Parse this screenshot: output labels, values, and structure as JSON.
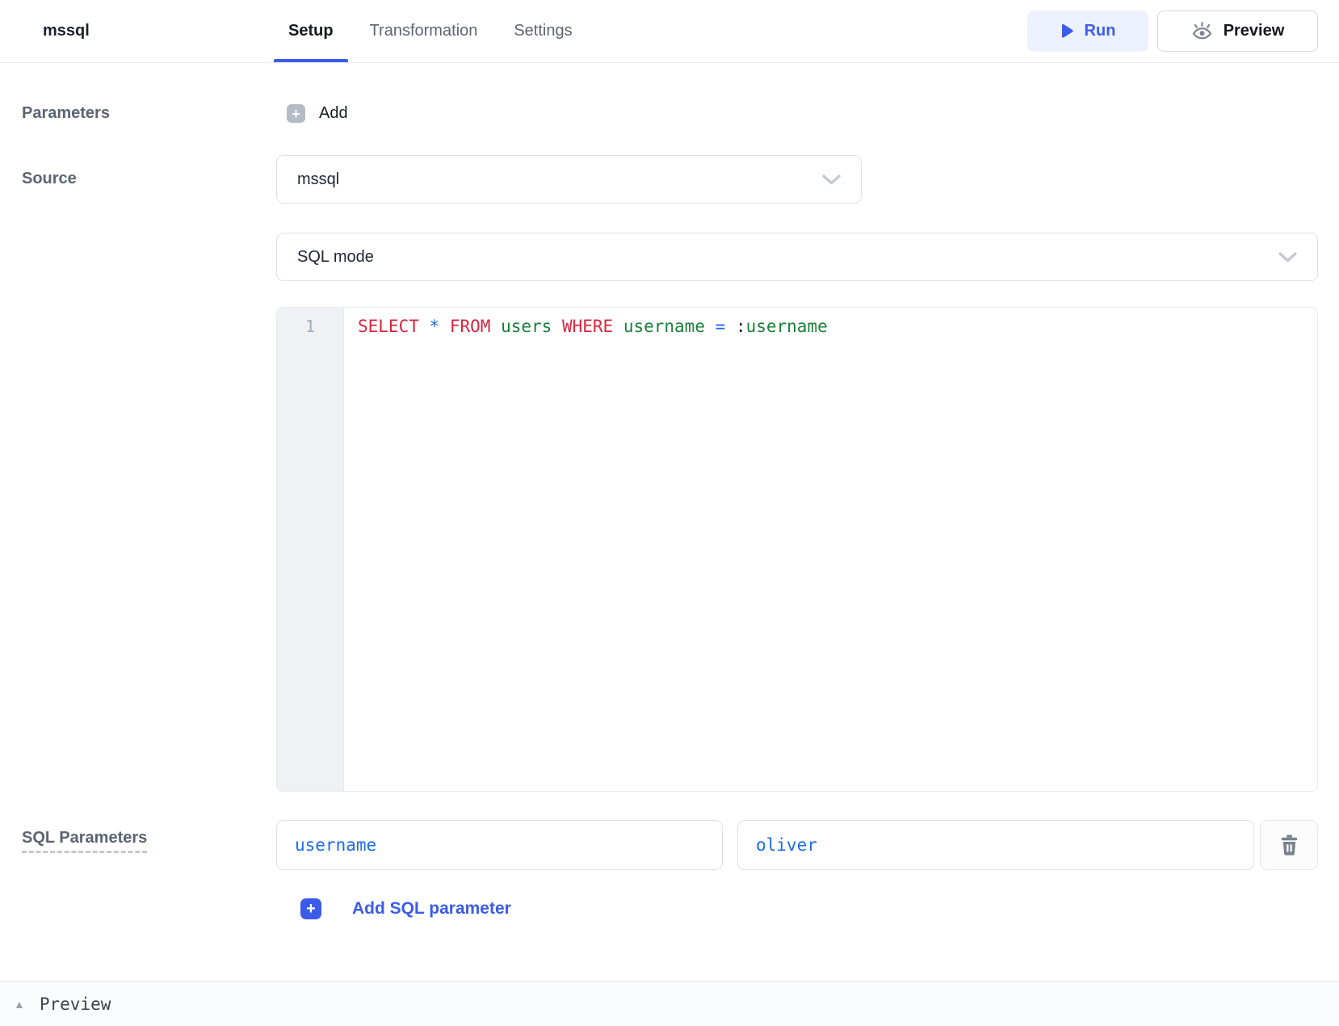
{
  "header": {
    "title": "mssql",
    "tabs": [
      {
        "label": "Setup",
        "active": true
      },
      {
        "label": "Transformation",
        "active": false
      },
      {
        "label": "Settings",
        "active": false
      }
    ],
    "run_label": "Run",
    "preview_label": "Preview"
  },
  "setup_form": {
    "parameters_label": "Parameters",
    "add_parameter_label": "Add",
    "source_label": "Source",
    "source_value": "mssql",
    "query_mode_value": "SQL mode"
  },
  "editor": {
    "line_number": "1",
    "code_text": "SELECT * FROM users WHERE username = :username",
    "tokens": [
      {
        "t": "SELECT",
        "c": "kw"
      },
      {
        "t": " "
      },
      {
        "t": "*",
        "c": "op"
      },
      {
        "t": " "
      },
      {
        "t": "FROM",
        "c": "kw"
      },
      {
        "t": " "
      },
      {
        "t": "users",
        "c": "id"
      },
      {
        "t": " "
      },
      {
        "t": "WHERE",
        "c": "kw"
      },
      {
        "t": " "
      },
      {
        "t": "username",
        "c": "id"
      },
      {
        "t": " "
      },
      {
        "t": "=",
        "c": "op"
      },
      {
        "t": " "
      },
      {
        "t": ":",
        "c": "punc"
      },
      {
        "t": "username",
        "c": "id"
      }
    ]
  },
  "sql_parameters": {
    "label": "SQL Parameters",
    "rows": [
      {
        "key": "username",
        "value": "oliver"
      }
    ],
    "add_label": "Add SQL parameter"
  },
  "preview_panel": {
    "label": "Preview"
  },
  "colors": {
    "accent": "#3a5ce9",
    "code_keyword": "#d7263f",
    "code_identifier": "#188038",
    "code_operator": "#2268e2",
    "input_text": "#1a6ee6"
  }
}
